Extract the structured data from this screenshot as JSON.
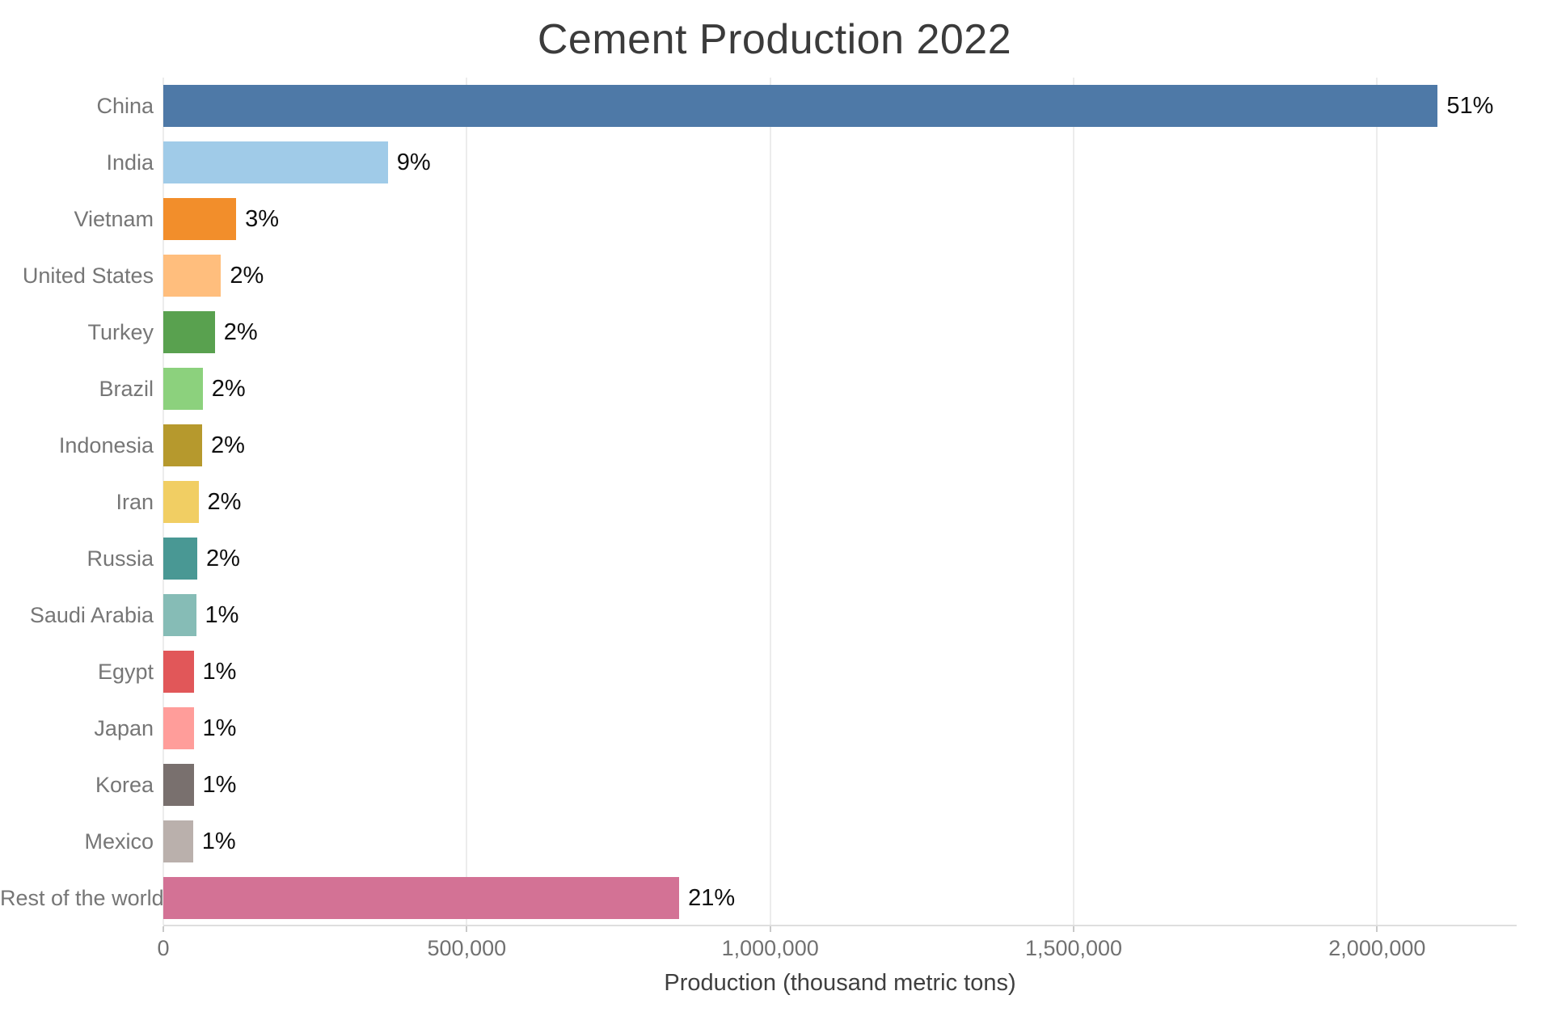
{
  "chart_data": {
    "type": "bar",
    "orientation": "horizontal",
    "title": "Cement Production 2022",
    "xlabel": "Production (thousand metric tons)",
    "ylabel": "",
    "legend": "none",
    "grid": true,
    "xlim": [
      0,
      2230000
    ],
    "categories": [
      "China",
      "India",
      "Vietnam",
      "United States",
      "Turkey",
      "Brazil",
      "Indonesia",
      "Iran",
      "Russia",
      "Saudi Arabia",
      "Egypt",
      "Japan",
      "Korea",
      "Mexico",
      "Rest of the world"
    ],
    "values": [
      2100000,
      370000,
      120000,
      95000,
      85000,
      65000,
      64000,
      58000,
      56000,
      54000,
      50000,
      50000,
      50000,
      49000,
      850000
    ],
    "percent_labels": [
      "51%",
      "9%",
      "3%",
      "2%",
      "2%",
      "2%",
      "2%",
      "2%",
      "2%",
      "1%",
      "1%",
      "1%",
      "1%",
      "1%",
      "21%"
    ],
    "bar_colors": [
      "#4E79A7",
      "#A0CBE8",
      "#F28E2B",
      "#FFBE7D",
      "#59A14F",
      "#8CD17D",
      "#B6992D",
      "#F1CE63",
      "#499894",
      "#86BCB6",
      "#E15759",
      "#FF9D9A",
      "#79706E",
      "#BAB0AC",
      "#D37295"
    ],
    "xticks": {
      "values": [
        0,
        500000,
        1000000,
        1500000,
        2000000
      ],
      "labels": [
        "0",
        "500,000",
        "1,000,000",
        "1,500,000",
        "2,000,000"
      ]
    }
  },
  "styles": {
    "title_color": "#3b3b3b",
    "category_label_color": "#767676",
    "value_label_color": "#0f0f0f",
    "tick_label_color": "#717171",
    "axis_title_color": "#3f3f3f",
    "gridline_color": "#ececec",
    "axis_line_color": "#dedede",
    "tick_mark_color": "#c9c9c9",
    "background_color": "#ffffff"
  }
}
